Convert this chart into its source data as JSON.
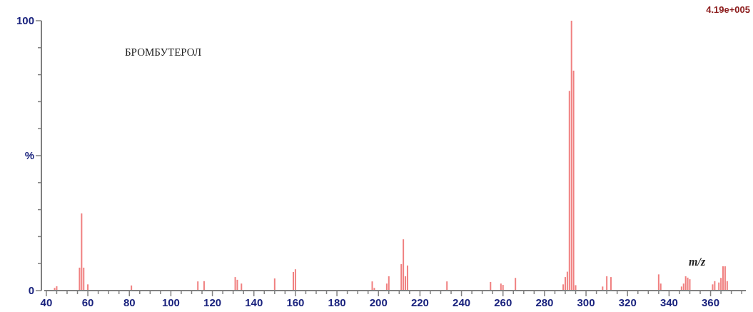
{
  "chart_data": {
    "type": "bar",
    "title": "БРОМБУТЕРОЛ",
    "xlabel": "m/z",
    "annotations": [
      "4.19e+005"
    ],
    "x": [
      44,
      45,
      56,
      57,
      58,
      60,
      81,
      113,
      116,
      131,
      132,
      134,
      150,
      159,
      160,
      197,
      198,
      204,
      205,
      211,
      212,
      213,
      214,
      233,
      254,
      259,
      260,
      266,
      289,
      290,
      291,
      292,
      293,
      294,
      295,
      308,
      310,
      312,
      335,
      336,
      346,
      347,
      348,
      349,
      350,
      361,
      362,
      364,
      365,
      366,
      367,
      368
    ],
    "values": [
      1,
      1.6,
      8.5,
      28.6,
      8.5,
      2.3,
      1.9,
      3.4,
      3.5,
      5,
      4,
      2.6,
      4.5,
      6.9,
      7.9,
      3.4,
      1,
      2.6,
      5.3,
      9.8,
      19,
      5.3,
      9.3,
      3.4,
      3.2,
      2.6,
      2.1,
      4.7,
      2.3,
      5,
      7,
      74,
      100,
      81.5,
      2,
      1.5,
      5.3,
      5,
      6,
      2.6,
      1.5,
      2.6,
      5.3,
      4.8,
      4.2,
      2.3,
      3.5,
      3,
      4.7,
      9,
      9,
      3.5
    ],
    "color": "#f08080",
    "xlim": [
      39,
      377
    ],
    "xticks": [
      40,
      {
        "value": 45,
        "label": null
      },
      {
        "value": 50,
        "label": null
      },
      {
        "value": 55,
        "label": null
      },
      60,
      {
        "value": 65,
        "label": null
      },
      {
        "value": 70,
        "label": null
      },
      {
        "value": 75,
        "label": null
      },
      80,
      {
        "value": 85,
        "label": null
      },
      {
        "value": 90,
        "label": null
      },
      {
        "value": 95,
        "label": null
      },
      100,
      {
        "value": 105,
        "label": null
      },
      {
        "value": 110,
        "label": null
      },
      {
        "value": 115,
        "label": null
      },
      120,
      {
        "value": 125,
        "label": null
      },
      {
        "value": 130,
        "label": null
      },
      {
        "value": 135,
        "label": null
      },
      140,
      {
        "value": 145,
        "label": null
      },
      {
        "value": 150,
        "label": null
      },
      {
        "value": 155,
        "label": null
      },
      160,
      {
        "value": 165,
        "label": null
      },
      {
        "value": 170,
        "label": null
      },
      {
        "value": 175,
        "label": null
      },
      180,
      {
        "value": 185,
        "label": null
      },
      {
        "value": 190,
        "label": null
      },
      {
        "value": 195,
        "label": null
      },
      200,
      {
        "value": 205,
        "label": null
      },
      {
        "value": 210,
        "label": null
      },
      {
        "value": 215,
        "label": null
      },
      220,
      {
        "value": 225,
        "label": null
      },
      {
        "value": 230,
        "label": null
      },
      {
        "value": 235,
        "label": null
      },
      240,
      {
        "value": 245,
        "label": null
      },
      {
        "value": 250,
        "label": null
      },
      {
        "value": 255,
        "label": null
      },
      260,
      {
        "value": 265,
        "label": null
      },
      {
        "value": 270,
        "label": null
      },
      {
        "value": 275,
        "label": null
      },
      280,
      {
        "value": 285,
        "label": null
      },
      {
        "value": 290,
        "label": null
      },
      {
        "value": 295,
        "label": null
      },
      300,
      {
        "value": 305,
        "label": null
      },
      {
        "value": 310,
        "label": null
      },
      {
        "value": 315,
        "label": null
      },
      320,
      {
        "value": 325,
        "label": null
      },
      {
        "value": 330,
        "label": null
      },
      {
        "value": 335,
        "label": null
      },
      340,
      {
        "value": 345,
        "label": null
      },
      {
        "value": 350,
        "label": null
      },
      {
        "value": 355,
        "label": null
      },
      360,
      {
        "value": 365,
        "label": null
      },
      {
        "value": 370,
        "label": null
      },
      {
        "value": 375,
        "label": null
      }
    ],
    "ylim": [
      0,
      100
    ],
    "yticks": [
      0,
      {
        "value": 10,
        "label": null
      },
      {
        "value": 20,
        "label": null
      },
      {
        "value": 30,
        "label": null
      },
      {
        "value": 40,
        "label": null
      },
      {
        "value": 50,
        "label": "%"
      },
      {
        "value": 60,
        "label": null
      },
      {
        "value": 70,
        "label": null
      },
      {
        "value": 80,
        "label": null
      },
      {
        "value": 90,
        "label": null
      },
      100
    ]
  }
}
